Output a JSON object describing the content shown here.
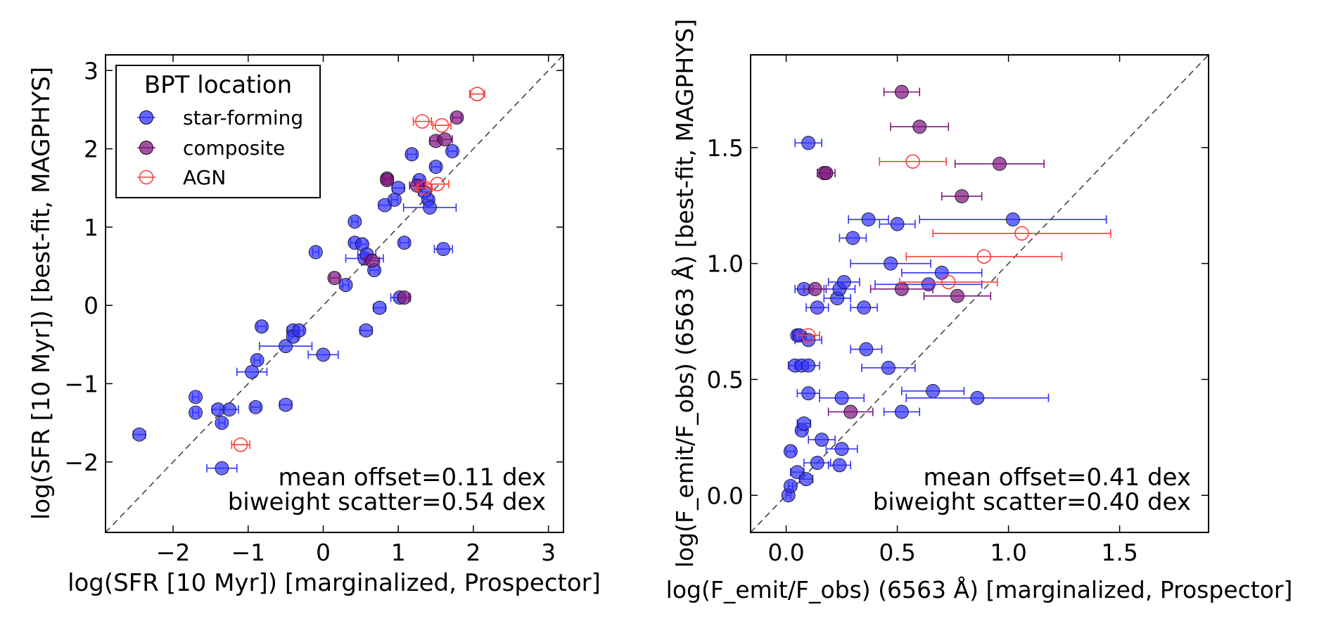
{
  "colors": {
    "star_forming": "#3333ff",
    "composite": "#7f187f",
    "agn": "#ff3b3b",
    "one_to_one": "#444444"
  },
  "legend": {
    "title": "BPT location",
    "items": [
      {
        "label": "star-forming",
        "marker": "filled-circle",
        "color": "#3333ff"
      },
      {
        "label": "composite",
        "marker": "filled-circle",
        "color": "#7f187f"
      },
      {
        "label": "AGN",
        "marker": "open-circle",
        "color": "#ff3b3b"
      }
    ]
  },
  "chart_data": [
    {
      "type": "scatter",
      "xlabel": "log(SFR [10 Myr]) [marginalized, Prospector]",
      "ylabel": "log(SFR [10 Myr]) [best-fit, MAGPHYS]",
      "xlim": [
        -2.9,
        3.2
      ],
      "ylim": [
        -2.9,
        3.2
      ],
      "xticks": [
        -2,
        -1,
        0,
        1,
        2,
        3
      ],
      "yticks": [
        -2,
        -1,
        0,
        1,
        2,
        3
      ],
      "one_to_one_line": true,
      "legend_position": "top-left",
      "annotations": [
        "mean offset=0.11 dex",
        "biweight scatter=0.54 dex"
      ],
      "series": [
        {
          "name": "star-forming",
          "marker": "filled",
          "points": [
            [
              -2.45,
              -1.65,
              0.08
            ],
            [
              -1.7,
              -1.17,
              0.04
            ],
            [
              -1.7,
              -1.37,
              0.04
            ],
            [
              -1.4,
              -1.33,
              0.08
            ],
            [
              -1.35,
              -1.5,
              0.04
            ],
            [
              -1.25,
              -1.33,
              0.12
            ],
            [
              -1.35,
              -2.08,
              0.2
            ],
            [
              -0.9,
              -1.3,
              0.06
            ],
            [
              -0.95,
              -0.85,
              0.2
            ],
            [
              -0.88,
              -0.7,
              0.04
            ],
            [
              -0.82,
              -0.27,
              0.06
            ],
            [
              -0.5,
              -0.52,
              0.35
            ],
            [
              -0.5,
              -1.27,
              0.08
            ],
            [
              -0.4,
              -0.32,
              0.08
            ],
            [
              -0.4,
              -0.4,
              0.06
            ],
            [
              -0.32,
              -0.32,
              0.06
            ],
            [
              0.0,
              -0.63,
              0.2
            ],
            [
              -0.1,
              0.68,
              0.04
            ],
            [
              0.3,
              0.26,
              0.04
            ],
            [
              0.42,
              1.07,
              0.04
            ],
            [
              0.42,
              0.8,
              0.06
            ],
            [
              0.52,
              0.78,
              0.06
            ],
            [
              0.55,
              0.6,
              0.25
            ],
            [
              0.58,
              0.65,
              0.12
            ],
            [
              0.68,
              0.45,
              0.06
            ],
            [
              0.75,
              -0.03,
              0.08
            ],
            [
              0.57,
              -0.32,
              0.08
            ],
            [
              0.82,
              1.28,
              0.08
            ],
            [
              0.95,
              1.35,
              0.04
            ],
            [
              1.0,
              1.5,
              0.08
            ],
            [
              1.02,
              0.1,
              0.12
            ],
            [
              1.08,
              0.8,
              0.06
            ],
            [
              1.18,
              1.93,
              0.06
            ],
            [
              1.28,
              1.6,
              0.06
            ],
            [
              1.35,
              1.45,
              0.08
            ],
            [
              1.4,
              1.35,
              0.06
            ],
            [
              1.42,
              1.25,
              0.35
            ],
            [
              1.5,
              1.77,
              0.06
            ],
            [
              1.6,
              0.72,
              0.12
            ],
            [
              1.72,
              1.97,
              0.06
            ]
          ]
        },
        {
          "name": "composite",
          "marker": "filled",
          "points": [
            [
              0.15,
              0.35,
              0.06
            ],
            [
              0.85,
              1.62,
              0.06
            ],
            [
              0.85,
              1.6,
              0.04
            ],
            [
              0.65,
              0.57,
              0.1
            ],
            [
              1.08,
              0.1,
              0.08
            ],
            [
              1.25,
              1.53,
              0.1
            ],
            [
              1.5,
              2.1,
              0.08
            ],
            [
              1.62,
              2.12,
              0.1
            ],
            [
              1.78,
              2.4,
              0.06
            ]
          ]
        },
        {
          "name": "AGN",
          "marker": "open",
          "points": [
            [
              -1.1,
              -1.78,
              0.12
            ],
            [
              1.32,
              2.35,
              0.12
            ],
            [
              1.58,
              2.3,
              0.12
            ],
            [
              2.05,
              2.7,
              0.1
            ],
            [
              1.52,
              1.55,
              0.15
            ],
            [
              1.35,
              1.5,
              0.1
            ]
          ]
        }
      ]
    },
    {
      "type": "scatter",
      "xlabel": "log(F_emit/F_obs) (6563 Å) [marginalized, Prospector]",
      "ylabel": "log(F_emit/F_obs) (6563 Å) [best-fit, MAGPHYS]",
      "xlim": [
        -0.16,
        1.9
      ],
      "ylim": [
        -0.16,
        1.9
      ],
      "xticks": [
        0.0,
        0.5,
        1.0,
        1.5
      ],
      "yticks": [
        0.0,
        0.5,
        1.0,
        1.5
      ],
      "one_to_one_line": true,
      "annotations": [
        "mean offset=0.41 dex",
        "biweight scatter=0.40 dex"
      ],
      "series": [
        {
          "name": "star-forming",
          "marker": "filled",
          "points": [
            [
              0.01,
              0.0,
              0.01
            ],
            [
              0.02,
              0.04,
              0.01
            ],
            [
              0.02,
              0.19,
              0.02
            ],
            [
              0.05,
              0.1,
              0.03
            ],
            [
              0.07,
              0.28,
              0.02
            ],
            [
              0.08,
              0.31,
              0.03
            ],
            [
              0.09,
              0.07,
              0.03
            ],
            [
              0.04,
              0.56,
              0.03
            ],
            [
              0.07,
              0.56,
              0.03
            ],
            [
              0.1,
              0.56,
              0.05
            ],
            [
              0.05,
              0.69,
              0.02
            ],
            [
              0.06,
              0.69,
              0.03
            ],
            [
              0.1,
              0.67,
              0.06
            ],
            [
              0.1,
              0.44,
              0.05
            ],
            [
              0.08,
              0.89,
              0.04
            ],
            [
              0.1,
              1.52,
              0.06
            ],
            [
              0.14,
              0.81,
              0.05
            ],
            [
              0.14,
              0.14,
              0.06
            ],
            [
              0.16,
              0.24,
              0.06
            ],
            [
              0.23,
              0.85,
              0.06
            ],
            [
              0.24,
              0.89,
              0.07
            ],
            [
              0.26,
              0.92,
              0.07
            ],
            [
              0.25,
              0.2,
              0.07
            ],
            [
              0.25,
              0.42,
              0.1
            ],
            [
              0.24,
              0.13,
              0.05
            ],
            [
              0.3,
              1.11,
              0.06
            ],
            [
              0.35,
              0.81,
              0.06
            ],
            [
              0.36,
              0.63,
              0.07
            ],
            [
              0.37,
              1.19,
              0.09
            ],
            [
              0.46,
              0.55,
              0.12
            ],
            [
              0.5,
              1.17,
              0.08
            ],
            [
              0.52,
              0.36,
              0.08
            ],
            [
              0.47,
              1.0,
              0.18
            ],
            [
              0.64,
              0.91,
              0.24
            ],
            [
              0.66,
              0.45,
              0.14
            ],
            [
              0.7,
              0.96,
              0.18
            ],
            [
              0.86,
              0.42,
              0.32
            ],
            [
              1.02,
              1.19,
              0.42
            ]
          ]
        },
        {
          "name": "composite",
          "marker": "filled",
          "points": [
            [
              0.13,
              0.89,
              0.05
            ],
            [
              0.17,
              1.39,
              0.03
            ],
            [
              0.18,
              1.39,
              0.04
            ],
            [
              0.29,
              0.36,
              0.1
            ],
            [
              0.52,
              0.89,
              0.14
            ],
            [
              0.52,
              1.74,
              0.08
            ],
            [
              0.6,
              1.59,
              0.13
            ],
            [
              0.77,
              0.86,
              0.15
            ],
            [
              0.79,
              1.29,
              0.09
            ],
            [
              0.96,
              1.43,
              0.2
            ]
          ]
        },
        {
          "name": "AGN",
          "marker": "open",
          "points": [
            [
              0.1,
              0.69,
              0.05
            ],
            [
              0.57,
              1.44,
              0.15
            ],
            [
              0.73,
              0.92,
              0.22
            ],
            [
              0.89,
              1.03,
              0.35
            ],
            [
              1.06,
              1.13,
              0.4
            ]
          ]
        }
      ]
    }
  ]
}
